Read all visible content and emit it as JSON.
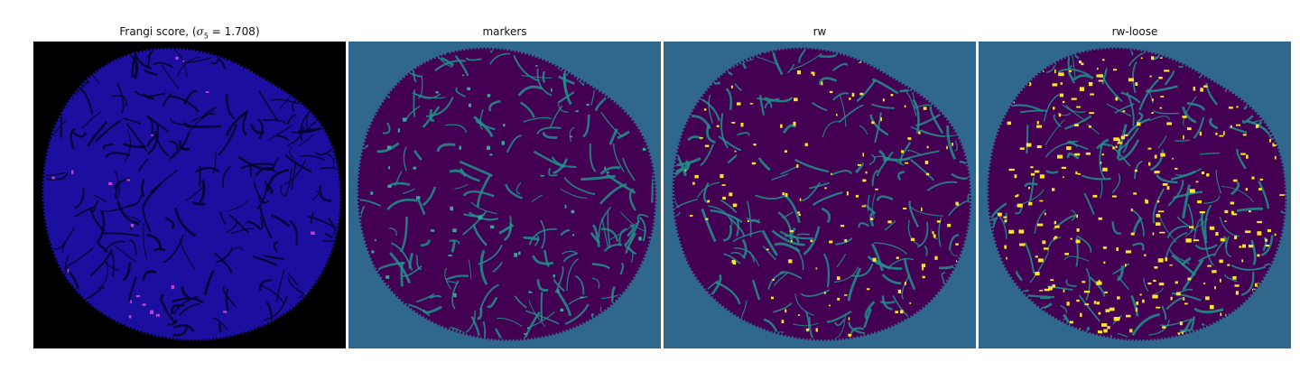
{
  "panels": [
    {
      "id": "frangi",
      "title_prefix": "Frangi score, (",
      "title_sigma": "σ",
      "title_sub": "5",
      "title_suffix": " = 1.708)",
      "colors": {
        "background": "#000000",
        "base": "#1c0fa0",
        "dark": "#05032a",
        "highlight": "#c040d0"
      }
    },
    {
      "id": "markers",
      "title": "markers",
      "colors": {
        "background": "#30678d",
        "base": "#440154",
        "mid": "#21918c",
        "highlight": "#3aa39a"
      }
    },
    {
      "id": "rw",
      "title": "rw",
      "colors": {
        "background": "#30678d",
        "base": "#440154",
        "mid": "#21918c",
        "highlight": "#fde725"
      }
    },
    {
      "id": "rw-loose",
      "title": "rw-loose",
      "colors": {
        "background": "#30678d",
        "base": "#440154",
        "mid": "#21918c",
        "highlight": "#fde725"
      }
    }
  ]
}
